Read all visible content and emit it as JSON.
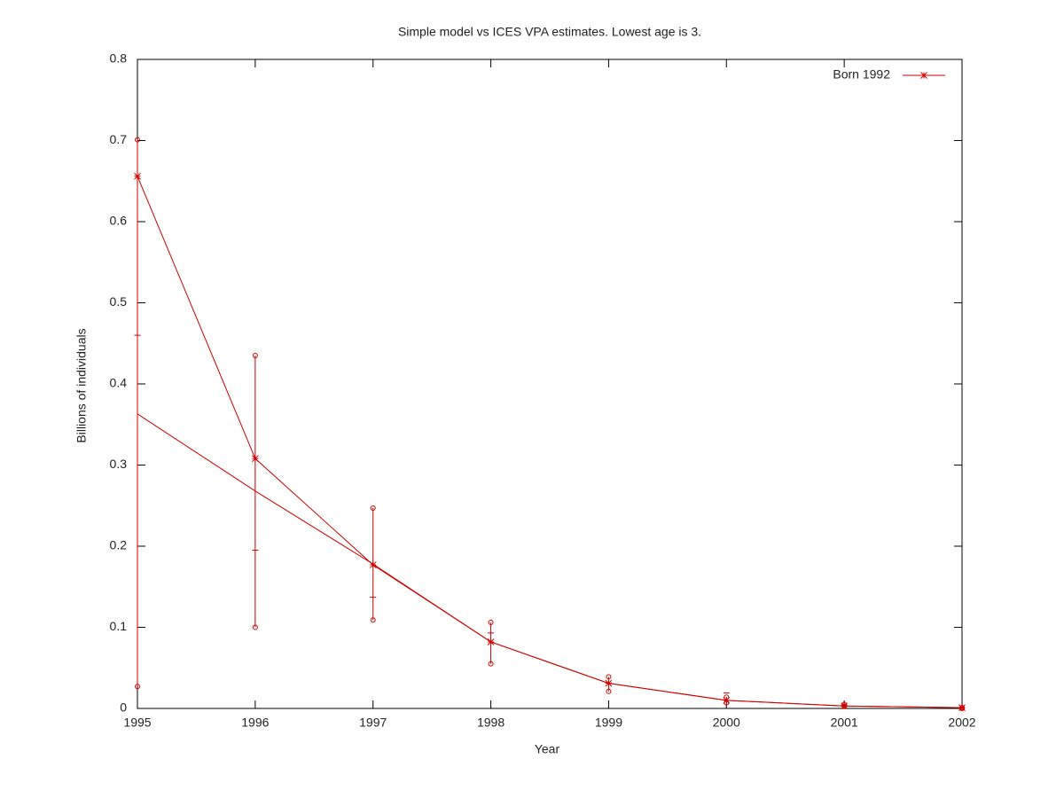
{
  "chart_data": {
    "type": "line",
    "title": "Simple model vs ICES VPA estimates. Lowest age is 3.",
    "x_label": "Year",
    "y_label": "Billions of individuals",
    "x": [
      1995,
      1996,
      1997,
      1998,
      1999,
      2000,
      2001,
      2002
    ],
    "series": [
      {
        "name": "Born 1992",
        "color": "#d00000",
        "marker": "star",
        "values": [
          0.656,
          0.308,
          0.177,
          0.082,
          0.031,
          0.01,
          0.003,
          0.001
        ]
      },
      {
        "color": "#d00000",
        "values": [
          0.363,
          0.268,
          0.178,
          0.082,
          0.031,
          0.01,
          0.003,
          0.001
        ]
      }
    ],
    "error_bars": {
      "color": "#d00000",
      "low": [
        0.027,
        0.1,
        0.109,
        0.055,
        0.021,
        0.007,
        0.003,
        0.0
      ],
      "mid": [
        0.46,
        0.195,
        0.137,
        0.093,
        0.031,
        0.019,
        0.004,
        0.001
      ],
      "high": [
        0.701,
        0.435,
        0.247,
        0.106,
        0.039,
        0.014,
        0.005,
        0.001
      ]
    },
    "xlim": [
      1995,
      2002
    ],
    "xticks": [
      1995,
      1996,
      1997,
      1998,
      1999,
      2000,
      2001,
      2002
    ],
    "ylim": [
      0,
      0.8
    ],
    "yticks": [
      0,
      0.1,
      0.2,
      0.3,
      0.4,
      0.5,
      0.6,
      0.7,
      0.8
    ],
    "grid": false,
    "legend": "top-right"
  }
}
